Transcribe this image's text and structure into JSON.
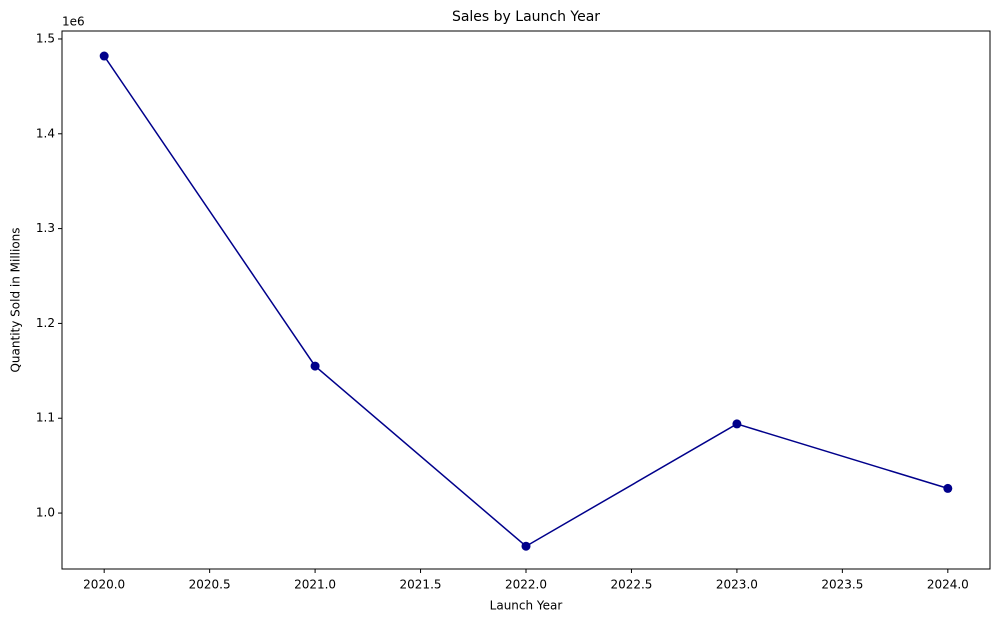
{
  "chart_data": {
    "type": "line",
    "title": "Sales by Launch Year",
    "x_label": "Launch Year",
    "y_label": "Quantity Sold in Millions",
    "y_offset_label": "1e6",
    "x": [
      2020,
      2021,
      2022,
      2023,
      2024
    ],
    "series": [
      {
        "name": "Quantity Sold",
        "color": "#00008b",
        "values": [
          1482000,
          1155000,
          965000,
          1094000,
          1026000
        ]
      }
    ],
    "xlim": [
      2019.8,
      2024.2
    ],
    "xticks": [
      {
        "value": 2020,
        "label": "2020.0"
      },
      {
        "value": 2020.5,
        "label": "2020.5"
      },
      {
        "value": 2021,
        "label": "2021.0"
      },
      {
        "value": 2021.5,
        "label": "2021.5"
      },
      {
        "value": 2022,
        "label": "2022.0"
      },
      {
        "value": 2022.5,
        "label": "2022.5"
      },
      {
        "value": 2023,
        "label": "2023.0"
      },
      {
        "value": 2023.5,
        "label": "2023.5"
      },
      {
        "value": 2024,
        "label": "2024.0"
      }
    ],
    "ylim": [
      941000,
      1508400
    ],
    "yticks": [
      {
        "value": 1000000,
        "label": "1.0"
      },
      {
        "value": 1100000,
        "label": "1.1"
      },
      {
        "value": 1200000,
        "label": "1.2"
      },
      {
        "value": 1300000,
        "label": "1.3"
      },
      {
        "value": 1400000,
        "label": "1.4"
      },
      {
        "value": 1500000,
        "label": "1.5"
      }
    ],
    "grid": false
  }
}
